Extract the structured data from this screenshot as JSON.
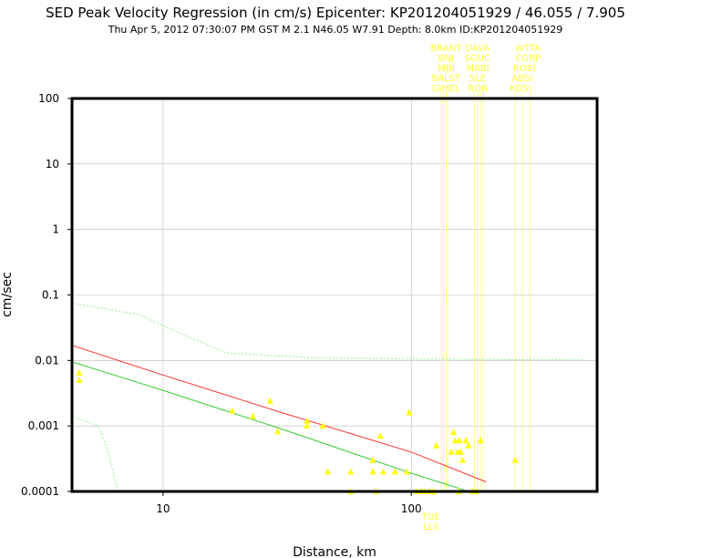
{
  "header": {
    "title": "SED Peak Velocity Regression (in cm/s) Epicenter: KP201204051929 / 46.055 / 7.905",
    "subtitle": "Thu Apr  5, 2012 07:30:07 PM GST   M 2.1    N46.05 W7.91   Depth: 8.0km   ID:KP201204051929"
  },
  "chart_data": {
    "type": "scatter",
    "title": "SED Peak Velocity Regression (in cm/s) Epicenter: KP201204051929 / 46.055 / 7.905",
    "xlabel": "Distance, km",
    "ylabel": "cm/sec",
    "xscale": "log",
    "yscale": "log",
    "xlim": [
      4.3,
      560
    ],
    "ylim": [
      0.0001,
      100
    ],
    "x_tick_labels": [
      "10",
      "100"
    ],
    "y_tick_labels": [
      "0.0001",
      "0.001",
      "0.01",
      "0.1",
      "1",
      "10",
      "100"
    ],
    "grid": true,
    "colors": {
      "points": "#ffff00",
      "red_curve": "#ff3333",
      "green_curve": "#33cc33",
      "bound_curve": "#99ee99",
      "frame": "#000000"
    },
    "series": [
      {
        "type": "line",
        "color": "#ff3333",
        "x": [
          4.3,
          10,
          30,
          100,
          200
        ],
        "y": [
          0.017,
          0.006,
          0.0016,
          0.0004,
          0.00014
        ]
      },
      {
        "type": "line",
        "color": "#33cc33",
        "x": [
          4.3,
          10,
          30,
          100,
          170
        ],
        "y": [
          0.0095,
          0.0035,
          0.0009,
          0.00019,
          0.0001
        ]
      },
      {
        "type": "line",
        "color": "#99ee99",
        "dashed": true,
        "x": [
          4.3,
          8,
          12,
          18,
          40,
          100,
          200,
          500
        ],
        "y": [
          0.075,
          0.05,
          0.025,
          0.013,
          0.011,
          0.0105,
          0.0103,
          0.0102
        ]
      },
      {
        "type": "line",
        "color": "#99ee99",
        "dashed": true,
        "x": [
          4.3,
          5.5,
          6.0,
          6.6
        ],
        "y": [
          0.0014,
          0.001,
          0.0004,
          0.0001
        ]
      },
      {
        "type": "scatter",
        "color": "#ffff00",
        "marker": "triangle",
        "points": [
          [
            4.6,
            0.0065
          ],
          [
            4.6,
            0.005
          ],
          [
            19,
            0.0017
          ],
          [
            23,
            0.0014
          ],
          [
            27,
            0.0024
          ],
          [
            29,
            0.00082
          ],
          [
            38,
            0.0012
          ],
          [
            38,
            0.001
          ],
          [
            44,
            0.001
          ],
          [
            46,
            0.0002
          ],
          [
            57,
            0.0002
          ],
          [
            57,
            0.0001
          ],
          [
            70,
            0.0003
          ],
          [
            70,
            0.0002
          ],
          [
            72,
            0.0001
          ],
          [
            75,
            0.0007
          ],
          [
            77,
            0.0002
          ],
          [
            86,
            0.0002
          ],
          [
            98,
            0.0016
          ],
          [
            96,
            0.0002
          ],
          [
            105,
            0.0001
          ],
          [
            109,
            0.0001
          ],
          [
            113,
            0.0001
          ],
          [
            118,
            0.0001
          ],
          [
            123,
            0.0001
          ],
          [
            126,
            0.0005
          ],
          [
            145,
            0.0004
          ],
          [
            148,
            0.0008
          ],
          [
            150,
            0.0006
          ],
          [
            156,
            0.0006
          ],
          [
            154,
            0.0004
          ],
          [
            158,
            0.0004
          ],
          [
            161,
            0.0003
          ],
          [
            166,
            0.0006
          ],
          [
            170,
            0.0005
          ],
          [
            155,
            0.0001
          ],
          [
            176,
            0.0001
          ],
          [
            182,
            0.0001
          ],
          [
            190,
            0.0006
          ],
          [
            262,
            0.0003
          ]
        ]
      }
    ],
    "station_labels": [
      {
        "text": "BRANT",
        "x": 138,
        "row": 0
      },
      {
        "text": "DAVA",
        "x": 185,
        "row": 0
      },
      {
        "text": "WTTA",
        "x": 295,
        "row": 0
      },
      {
        "text": "BNI",
        "x": 138,
        "row": 1
      },
      {
        "text": "SGUC",
        "x": 185,
        "row": 1
      },
      {
        "text": "CGRP",
        "x": 295,
        "row": 1
      },
      {
        "text": "MBI",
        "x": 138,
        "row": 2
      },
      {
        "text": "MABI",
        "x": 185,
        "row": 2
      },
      {
        "text": "ROSI",
        "x": 285,
        "row": 2
      },
      {
        "text": "BALST",
        "x": 138,
        "row": 3
      },
      {
        "text": "SLE",
        "x": 185,
        "row": 3
      },
      {
        "text": "ABSI",
        "x": 280,
        "row": 3
      },
      {
        "text": "GIMEL",
        "x": 138,
        "row": 4
      },
      {
        "text": "ROB",
        "x": 185,
        "row": 4
      },
      {
        "text": "KOSI",
        "x": 275,
        "row": 4
      }
    ],
    "bottom_labels": [
      {
        "text": "TUE",
        "x": 120
      },
      {
        "text": "LLS",
        "x": 120
      }
    ],
    "station_lines_x": [
      132,
      135,
      138,
      140,
      180,
      185,
      190,
      195,
      262,
      280,
      300
    ]
  }
}
